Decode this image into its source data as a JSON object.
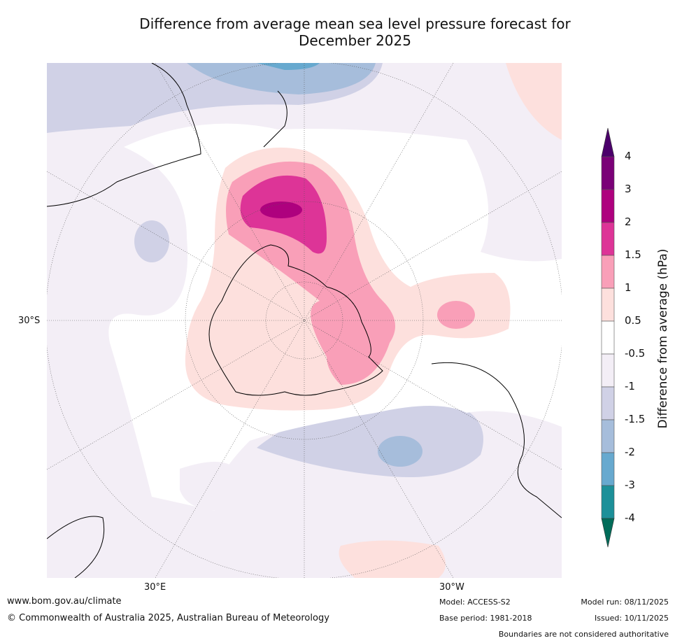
{
  "title_line1": "Difference from average mean sea level pressure forecast for",
  "title_line2": "December 2025",
  "map_labels": {
    "lat": "30°S",
    "lon_e": "30°E",
    "lon_w": "30°W"
  },
  "colorbar": {
    "title": "Difference from average (hPa)",
    "ticks": [
      "4",
      "3",
      "2",
      "1.5",
      "1",
      "0.5",
      "-0.5",
      "-1",
      "-1.5",
      "-2",
      "-3",
      "-4"
    ],
    "colors": [
      "#7a0177",
      "#ae017e",
      "#dd3497",
      "#f99fb8",
      "#fde0dd",
      "#ffffff",
      "#f3eef6",
      "#d0d1e6",
      "#a6bddb",
      "#67a9cf",
      "#1c9099"
    ],
    "over_color": "#4b006b",
    "under_color": "#016c59"
  },
  "footer": {
    "url": "www.bom.gov.au/climate",
    "copyright": "© Commonwealth of Australia 2025, Australian Bureau of Meteorology",
    "model": "Model: ACCESS-S2",
    "base_period": "Base period: 1981-2018",
    "model_run": "Model run: 08/11/2025",
    "issued": "Issued: 10/11/2025",
    "disclaimer": "Boundaries are not considered authoritative"
  }
}
